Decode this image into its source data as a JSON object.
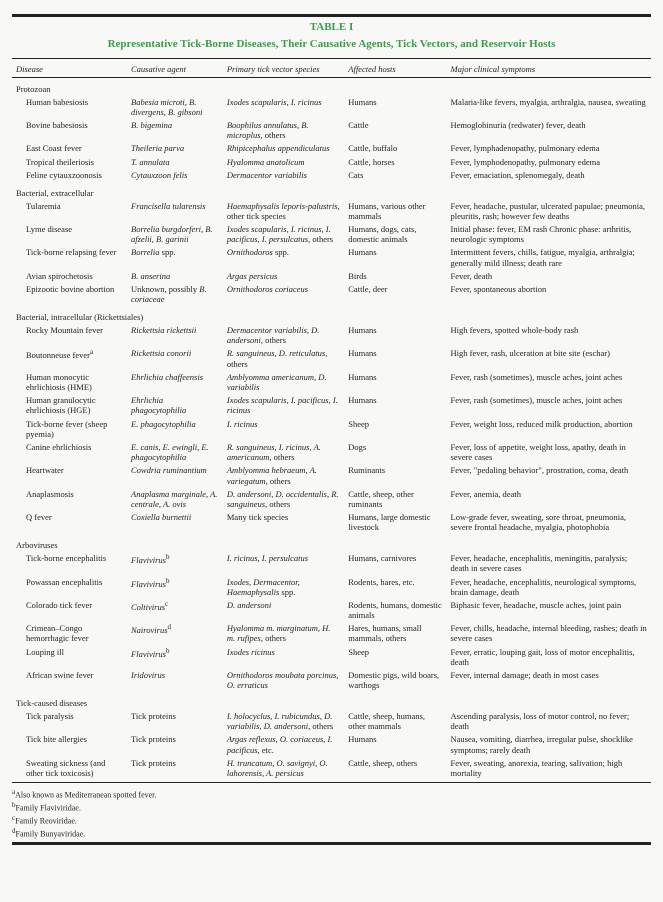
{
  "title_line1": "TABLE I",
  "title_line2": "Representative Tick-Borne Diseases, Their Causative Agents, Tick Vectors, and Reservoir Hosts",
  "columns": [
    "Disease",
    "Causative agent",
    "Primary tick vector species",
    "Affected hosts",
    "Major clinical symptoms"
  ],
  "col_widths": [
    "18%",
    "15%",
    "19%",
    "16%",
    "32%"
  ],
  "sections": [
    {
      "name": "Protozoan",
      "rows": [
        {
          "disease": "Human babesiosis",
          "agent": "Babesia microti, B. divergens, B. gibsoni",
          "agent_ital": true,
          "vector": "Ixodes scapularis, I. ricinus",
          "vector_ital": true,
          "hosts": "Humans",
          "symptoms": "Malaria-like fevers, myalgia, arthralgia, nausea, sweating"
        },
        {
          "disease": "Bovine babesiosis",
          "agent": "B. bigemina",
          "agent_ital": true,
          "vector": "Boophilus annulatus, B. microplus, ",
          "vector_ital": true,
          "vector_tail": "others",
          "hosts": "Cattle",
          "symptoms": "Hemoglobinuria (redwater) fever, death"
        },
        {
          "disease": "East Coast fever",
          "agent": "Theileria parva",
          "agent_ital": true,
          "vector": "Rhipicephalus appendiculatus",
          "vector_ital": true,
          "hosts": "Cattle, buffalo",
          "symptoms": "Fever, lymphadenopathy, pulmonary edema"
        },
        {
          "disease": "Tropical theileriosis",
          "agent": "T. annulata",
          "agent_ital": true,
          "vector": "Hyalomma anatolicum",
          "vector_ital": true,
          "hosts": "Cattle, horses",
          "symptoms": "Fever, lymphodenopathy, pulmonary edema"
        },
        {
          "disease": "Feline cytauxzoonosis",
          "agent": "Cytauxzoon felis",
          "agent_ital": true,
          "vector": "Dermacentor variabilis",
          "vector_ital": true,
          "hosts": "Cats",
          "symptoms": "Fever, emaciation, splenomegaly, death"
        }
      ]
    },
    {
      "name": "Bacterial, extracellular",
      "rows": [
        {
          "disease": "Tularemia",
          "agent": "Francisella tularensis",
          "agent_ital": true,
          "vector": "Haemaphysalis leporis-palustris, ",
          "vector_ital": true,
          "vector_tail": "other tick species",
          "hosts": "Humans, various other mammals",
          "symptoms": "Fever, headache, pustular, ulcerated papulae; pneumonia, pleuritis, rash; however few deaths"
        },
        {
          "disease": "Lyme disease",
          "agent": "Borrelia burgdorferi, B. afzelii, B. garinii",
          "agent_ital": true,
          "vector": "Ixodes scapularis, I. ricinus, I. pacificus, I. persulcatus, ",
          "vector_ital": true,
          "vector_tail": "others",
          "hosts": "Humans, dogs, cats, domestic animals",
          "symptoms": "Initial phase: fever, EM rash Chronic phase: arthritis, neurologic symptoms"
        },
        {
          "disease": "Tick-borne relapsing fever",
          "agent": "Borrelia ",
          "agent_ital": true,
          "agent_tail": "spp.",
          "vector": "Ornithodoros ",
          "vector_ital": true,
          "vector_tail": "spp.",
          "hosts": "Humans",
          "symptoms": "Intermittent fevers, chills, fatigue, myalgia, arthralgia; generally mild illness; death rare"
        },
        {
          "disease": "Avian spirochetosis",
          "agent": "B. anserina",
          "agent_ital": true,
          "vector": "Argas persicus",
          "vector_ital": true,
          "hosts": "Birds",
          "symptoms": "Fever, death"
        },
        {
          "disease": "Epizootic bovine abortion",
          "agent_pre": "Unknown, possibly ",
          "agent": "B. coriaceae",
          "agent_ital": true,
          "vector": "Ornithodoros coriaceus",
          "vector_ital": true,
          "hosts": "Cattle, deer",
          "symptoms": "Fever, spontaneous abortion"
        }
      ]
    },
    {
      "name": "Bacterial, intracellular (Rickettsiales)",
      "rows": [
        {
          "disease": "Rocky Mountain fever",
          "agent": "Rickettsia rickettsii",
          "agent_ital": true,
          "vector": "Dermacentor variabilis, D. andersoni, ",
          "vector_ital": true,
          "vector_tail": "others",
          "hosts": "Humans",
          "symptoms": "High fevers, spotted whole-body rash"
        },
        {
          "disease": "Boutonneuse fever",
          "disease_sup": "a",
          "agent": "Rickettsia conorii",
          "agent_ital": true,
          "vector": "R. sanguineus, D. reticulatus, ",
          "vector_ital": true,
          "vector_tail": "others",
          "hosts": "Humans",
          "symptoms": "High fever, rash, ulceration at bite site (eschar)"
        },
        {
          "disease": "Human monocytic ehrlichiosis (HME)",
          "agent": "Ehrlichia chaffeensis",
          "agent_ital": true,
          "vector": "Amblyomma americanum, D. variabilis",
          "vector_ital": true,
          "hosts": "Humans",
          "symptoms": "Fever, rash (sometimes), muscle aches, joint aches"
        },
        {
          "disease": "Human granulocytic ehrlichiosis (HGE)",
          "agent": "Ehrlichia phagocytophilia",
          "agent_ital": true,
          "vector": "Ixodes scapularis, I. pacificus, I. ricinus",
          "vector_ital": true,
          "hosts": "Humans",
          "symptoms": "Fever, rash (sometimes), muscle aches, joint aches"
        },
        {
          "disease": "Tick-borne fever (sheep pyemia)",
          "agent": "E. phagocytophilia",
          "agent_ital": true,
          "vector": "I. ricinus",
          "vector_ital": true,
          "hosts": "Sheep",
          "symptoms": "Fever, weight loss, reduced milk production, abortion"
        },
        {
          "disease": "Canine ehrlichiosis",
          "agent": "E. canis, E. ewingli, E. phagocytophilia",
          "agent_ital": true,
          "vector": "R. sanguineus, I. ricinus, A. americanum, ",
          "vector_ital": true,
          "vector_tail": "others",
          "hosts": "Dogs",
          "symptoms": "Fever, loss of appetite, weight loss, apathy, death in severe cases"
        },
        {
          "disease": "Heartwater",
          "agent": "Cowdria ruminantium",
          "agent_ital": true,
          "vector": "Amblyomma hebraeum, A. variegatum, ",
          "vector_ital": true,
          "vector_tail": "others",
          "hosts": "Ruminants",
          "symptoms": "Fever, \"pedaling behavior\", prostration, coma, death"
        },
        {
          "disease": "Anaplasmosis",
          "agent": "Anaplasma marginale, A. centrale, A. ovis",
          "agent_ital": true,
          "vector": "D. andersoni, D. occidentalis, R. sanguineus, ",
          "vector_ital": true,
          "vector_tail": "others",
          "hosts": "Cattle, sheep, other ruminants",
          "symptoms": "Fever, anemia, death"
        },
        {
          "disease": "Q fever",
          "agent": "Coxiella burnettii",
          "agent_ital": true,
          "vector_pre": "Many tick species",
          "hosts": "Humans, large domestic livestock",
          "symptoms": "Low-grade fever, sweating, sore throat, pneumonia, severe frontal headache, myalgia, photophobia"
        }
      ]
    },
    {
      "name": "Arboviruses",
      "rows": [
        {
          "disease": "Tick-borne encephalitis",
          "agent": "Flavivirus",
          "agent_ital": true,
          "agent_sup": "b",
          "vector": "I. ricinus, I. persulcatus",
          "vector_ital": true,
          "hosts": "Humans, carnivores",
          "symptoms": "Fever, headache, encephalitis, meningitis, paralysis; death in severe cases"
        },
        {
          "disease": "Powassan encephalitis",
          "agent": "Flavivirus",
          "agent_ital": true,
          "agent_sup": "b",
          "vector": "Ixodes, Dermacentor, Haemaphysalis ",
          "vector_ital": true,
          "vector_tail": "spp.",
          "hosts": "Rodents, hares, etc.",
          "symptoms": "Fever, headache, encephalitis, neurological symptoms, brain damage, death"
        },
        {
          "disease": "Colorado tick fever",
          "agent": "Coltivirus",
          "agent_ital": true,
          "agent_sup": "c",
          "vector": "D. andersoni",
          "vector_ital": true,
          "hosts": "Rodents, humans, domestic animals",
          "symptoms": "Biphasic fever, headache, muscle aches, joint pain"
        },
        {
          "disease": "Crimean–Congo hemorrhagic fever",
          "agent": "Nairovirus",
          "agent_ital": true,
          "agent_sup": "d",
          "vector": "Hyalomma m. marginatum, H. m. rufipes, ",
          "vector_ital": true,
          "vector_tail": "others",
          "hosts": "Hares, humans, small mammals, others",
          "symptoms": "Fever, chills, headache, internal bleeding, rashes; death in severe cases"
        },
        {
          "disease": "Louping ill",
          "agent": "Flavivirus",
          "agent_ital": true,
          "agent_sup": "b",
          "vector": "Ixodes ricinus",
          "vector_ital": true,
          "hosts": "Sheep",
          "symptoms": "Fever, erratic, louping gait, loss of motor encephalitis, death"
        },
        {
          "disease": "African swine fever",
          "agent": "Iridovirus",
          "agent_ital": true,
          "vector": "Ornithodoros moubata porcinus, O. erraticus",
          "vector_ital": true,
          "hosts": "Domestic pigs, wild boars, warthogs",
          "symptoms": "Fever, internal damage; death in most cases"
        }
      ]
    },
    {
      "name": "Tick-caused diseases",
      "rows": [
        {
          "disease": "Tick paralysis",
          "agent_pre": "Tick proteins",
          "vector": "I. holocyclus, I. rubicundus, D. variabilis, D. andersoni, ",
          "vector_ital": true,
          "vector_tail": "others",
          "hosts": "Cattle, sheep, humans, other mammals",
          "symptoms": "Ascending paralysis, loss of motor control, no fever; death"
        },
        {
          "disease": "Tick bite allergies",
          "agent_pre": "Tick proteins",
          "vector": "Argas reflexus, O. coriaceus, I. pacificus, ",
          "vector_ital": true,
          "vector_tail": "etc.",
          "hosts": "Humans",
          "symptoms": "Nausea, vomiting, diarrhea, irregular pulse, shocklike symptoms; rarely death"
        },
        {
          "disease": "Sweating sickness (and other tick toxicosis)",
          "agent_pre": "Tick proteins",
          "vector": "H. truncatum, O. savignyi, O. lahorensis, A. persicus",
          "vector_ital": true,
          "hosts": "Cattle, sheep, others",
          "symptoms": "Fever, sweating, anorexia, tearing, salivation; high mortality"
        }
      ]
    }
  ],
  "footnotes": [
    "Also known as Mediterranean spotted fever.",
    "Family Flaviviridae.",
    "Family Reoviridae.",
    "Family Bunyaviridae."
  ],
  "footnote_marks": [
    "a",
    "b",
    "c",
    "d"
  ]
}
